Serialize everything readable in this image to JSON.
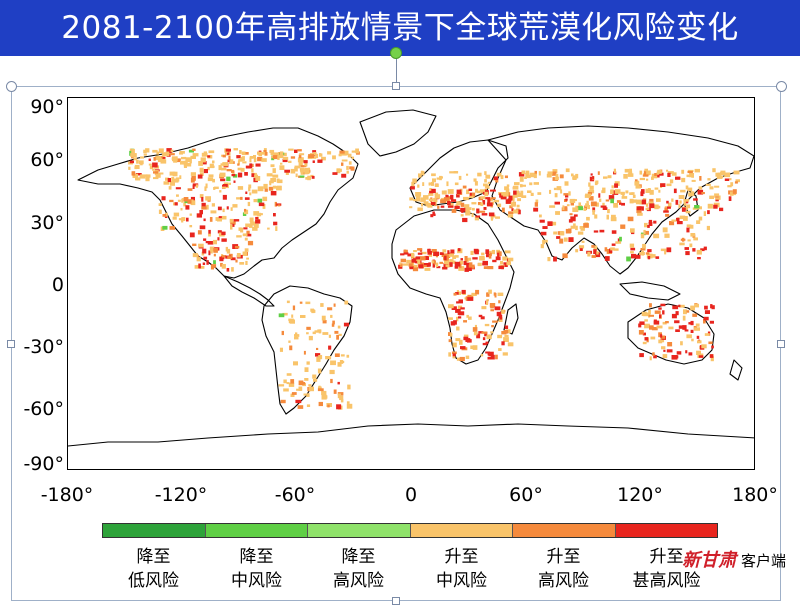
{
  "title": "2081-2100年高排放情景下全球荒漠化风险变化",
  "map": {
    "y_ticks": [
      "90°",
      "60°",
      "30°",
      "0",
      "-30°",
      "-60°",
      "-90°"
    ],
    "x_ticks": [
      "-180°",
      "-120°",
      "-60°",
      "0",
      "60°",
      "120°",
      "180°"
    ],
    "lon_range": [
      -180,
      180
    ],
    "lat_range": [
      -90,
      90
    ],
    "colors": {
      "ocean": "#ffffff",
      "land_outline": "#000000",
      "up_medium": "#f9c46a",
      "up_high": "#f58a3c",
      "up_very_high": "#e8251e",
      "down_low": "#2ea33a",
      "down_medium": "#5fcf45",
      "down_high": "#8fe26a"
    }
  },
  "legend": {
    "items": [
      {
        "line1": "降至",
        "line2": "低风险",
        "color": "#2ea33a"
      },
      {
        "line1": "降至",
        "line2": "中风险",
        "color": "#5fcf45"
      },
      {
        "line1": "降至",
        "line2": "高风险",
        "color": "#8fe26a"
      },
      {
        "line1": "升至",
        "line2": "中风险",
        "color": "#f9c46a"
      },
      {
        "line1": "升至",
        "line2": "高风险",
        "color": "#f58a3c"
      },
      {
        "line1": "升至",
        "line2": "甚高风险",
        "color": "#e8251e"
      }
    ]
  },
  "watermark": {
    "brand": "新甘肃",
    "suffix": "客户端"
  }
}
